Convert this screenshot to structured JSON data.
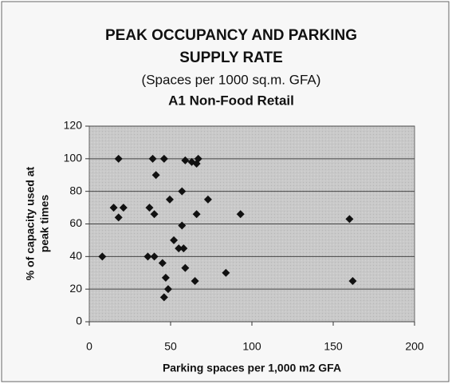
{
  "chart_data": {
    "type": "scatter",
    "title": [
      "PEAK OCCUPANCY AND PARKING",
      "SUPPLY RATE"
    ],
    "subtitle": "(Spaces per 1000 sq.m. GFA)",
    "chart_subtitle": "A1 Non-Food Retail",
    "x_label": "Parking spaces per 1,000 m2 GFA",
    "y_label": [
      "% of capacity used at",
      "peak times"
    ],
    "xlim": [
      0,
      200
    ],
    "xticks": [
      0,
      50,
      100,
      150,
      200
    ],
    "ylim": [
      0,
      120
    ],
    "yticks": [
      0,
      20,
      40,
      60,
      80,
      100,
      120
    ],
    "grid": true,
    "color": "#111111",
    "x": [
      8,
      18,
      15,
      18,
      21,
      39,
      46,
      41,
      37,
      40,
      36,
      40,
      45,
      47,
      48.5,
      46,
      49.5,
      52,
      55,
      58,
      57,
      57,
      59,
      59,
      63,
      66,
      67,
      66,
      65,
      73,
      84,
      93,
      160,
      162
    ],
    "values": [
      40,
      100,
      70,
      64,
      70,
      100,
      100,
      90,
      70,
      66,
      40,
      40,
      36,
      27,
      20,
      15,
      75,
      50,
      45,
      45,
      80,
      59,
      33,
      99,
      98,
      97,
      100,
      66,
      25,
      75,
      30,
      66,
      63,
      25
    ]
  }
}
